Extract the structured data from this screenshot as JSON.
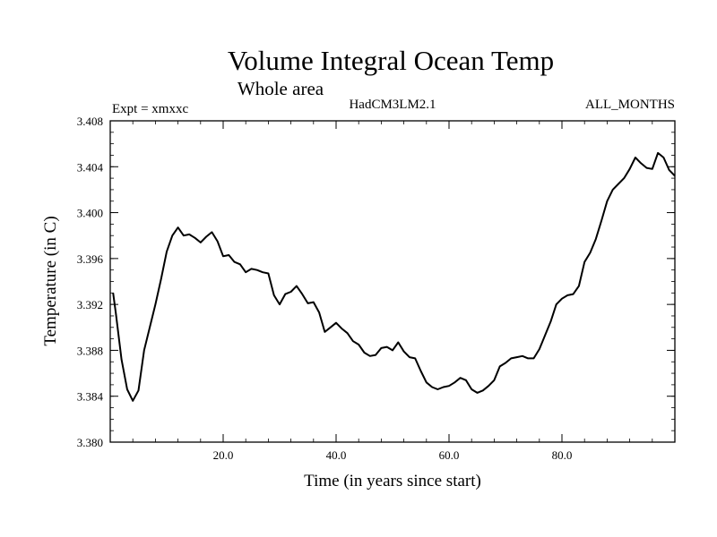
{
  "chart_data": {
    "type": "line",
    "title": "Volume Integral Ocean Temp",
    "subtitle": "Whole area",
    "left_label": "Expt = xmxxc",
    "center_label": "HadCM3LM2.1",
    "right_label": "ALL_MONTHS",
    "xlabel": "Time (in years since start)",
    "ylabel": "Temperature (in C)",
    "xlim": [
      0,
      100
    ],
    "ylim": [
      3.38,
      3.408
    ],
    "xticks": [
      "20.0",
      "40.0",
      "60.0",
      "80.0"
    ],
    "xtick_values": [
      20,
      40,
      60,
      80
    ],
    "yticks": [
      "3.380",
      "3.384",
      "3.388",
      "3.392",
      "3.396",
      "3.400",
      "3.404",
      "3.408"
    ],
    "ytick_values": [
      3.38,
      3.384,
      3.388,
      3.392,
      3.396,
      3.4,
      3.404,
      3.408
    ],
    "grid": false,
    "series": [
      {
        "color": "#000000",
        "x": [
          0.5,
          1,
          2,
          3,
          4,
          5,
          6,
          7,
          8,
          9,
          10,
          11,
          12,
          13,
          14,
          15,
          16,
          17,
          18,
          19,
          20,
          21,
          22,
          23,
          24,
          25,
          26,
          27,
          28,
          29,
          30,
          31,
          32,
          33,
          34,
          35,
          36,
          37,
          38,
          39,
          40,
          41,
          42,
          43,
          44,
          45,
          46,
          47,
          48,
          49,
          50,
          51,
          52,
          53,
          54,
          55,
          56,
          57,
          58,
          59,
          60,
          61,
          62,
          63,
          64,
          65,
          66,
          67,
          68,
          69,
          70,
          71,
          72,
          73,
          74,
          75,
          76,
          77,
          78,
          79,
          80,
          81,
          82,
          83,
          84,
          85,
          86,
          87,
          88,
          89,
          90,
          91,
          92,
          93,
          94,
          95,
          96,
          97,
          98,
          99,
          100
        ],
        "values": [
          3.393,
          3.3912,
          3.3872,
          3.3846,
          3.3836,
          3.3845,
          3.388,
          3.39,
          3.392,
          3.3942,
          3.3966,
          3.398,
          3.3987,
          3.398,
          3.3981,
          3.3978,
          3.3974,
          3.3979,
          3.3983,
          3.3975,
          3.3962,
          3.3963,
          3.3957,
          3.3955,
          3.3948,
          3.3951,
          3.395,
          3.3948,
          3.3947,
          3.3928,
          3.392,
          3.3929,
          3.3931,
          3.3936,
          3.3929,
          3.3921,
          3.3922,
          3.3913,
          3.3896,
          3.39,
          3.3904,
          3.3899,
          3.3895,
          3.3888,
          3.3885,
          3.3878,
          3.3875,
          3.3876,
          3.3882,
          3.3883,
          3.388,
          3.3887,
          3.3879,
          3.3874,
          3.3873,
          3.3862,
          3.3852,
          3.3848,
          3.3846,
          3.3848,
          3.3849,
          3.3852,
          3.3856,
          3.3854,
          3.3846,
          3.3843,
          3.3845,
          3.3849,
          3.3854,
          3.3866,
          3.3869,
          3.3873,
          3.3874,
          3.3875,
          3.3873,
          3.3873,
          3.3881,
          3.3893,
          3.3905,
          3.392,
          3.3925,
          3.3928,
          3.3929,
          3.3936,
          3.3957,
          3.3965,
          3.3977,
          3.3993,
          3.401,
          3.402,
          3.4025,
          3.403,
          3.4038,
          3.4048,
          3.4043,
          3.4039,
          3.4038,
          3.4052,
          3.4048,
          3.4037,
          3.4032
        ]
      }
    ]
  }
}
